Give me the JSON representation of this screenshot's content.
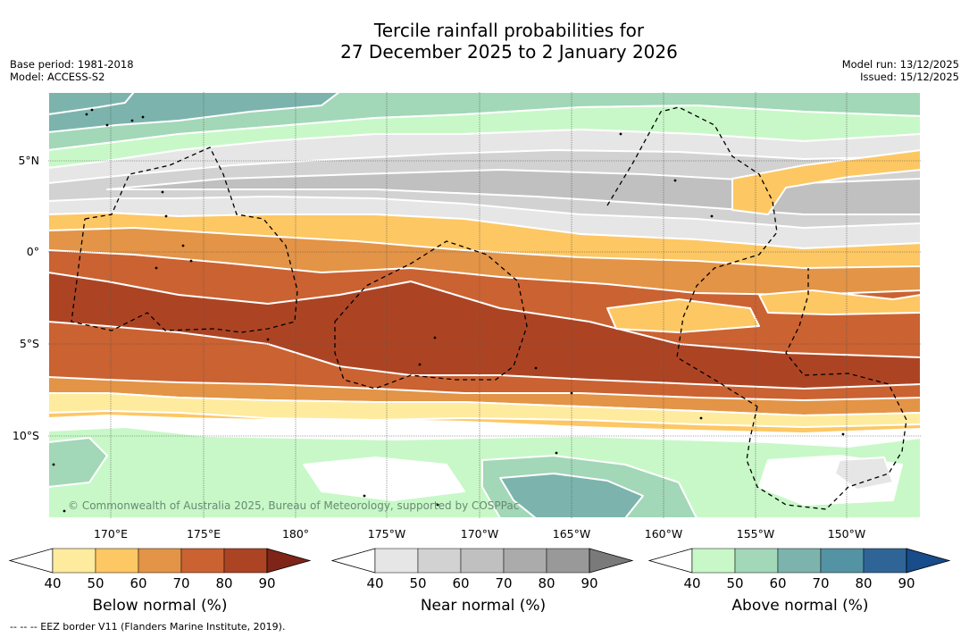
{
  "title": {
    "line1": "Tercile rainfall probabilities for",
    "line2": "27 December 2025 to 2 January 2026"
  },
  "meta_left": {
    "base_period": "Base period: 1981-2018",
    "model": "Model: ACCESS-S2"
  },
  "meta_right": {
    "model_run": "Model run: 13/12/2025",
    "issued": "Issued: 15/12/2025"
  },
  "map": {
    "lat_labels": [
      "5°N",
      "0°",
      "5°S",
      "10°S"
    ],
    "lon_labels": [
      "170°E",
      "175°E",
      "180°",
      "175°W",
      "170°W",
      "165°W",
      "160°W",
      "155°W",
      "150°W"
    ],
    "copyright": "© Commonwealth of Australia 2025, Bureau of Meteorology, supported by COSPPac",
    "colors": {
      "below": [
        "#ffffff",
        "#feeb9e",
        "#fdc763",
        "#e39446",
        "#cb6232",
        "#ac4424",
        "#7e2518"
      ],
      "near": [
        "#ffffff",
        "#e6e6e6",
        "#d2d2d2",
        "#c0c0c0",
        "#ababab",
        "#999999",
        "#7a7a7a"
      ],
      "above": [
        "#ffffff",
        "#c8f8c8",
        "#a2d7b8",
        "#7cb4ad",
        "#5393a4",
        "#2f6596",
        "#184c8a"
      ]
    }
  },
  "colorbars": {
    "ticks": [
      "40",
      "50",
      "60",
      "70",
      "80",
      "90"
    ],
    "below_label": "Below normal (%)",
    "near_label": "Near normal (%)",
    "above_label": "Above normal (%)"
  },
  "footnote": "-- -- -- EEZ border V11 (Flanders Marine Institute, 2019)."
}
